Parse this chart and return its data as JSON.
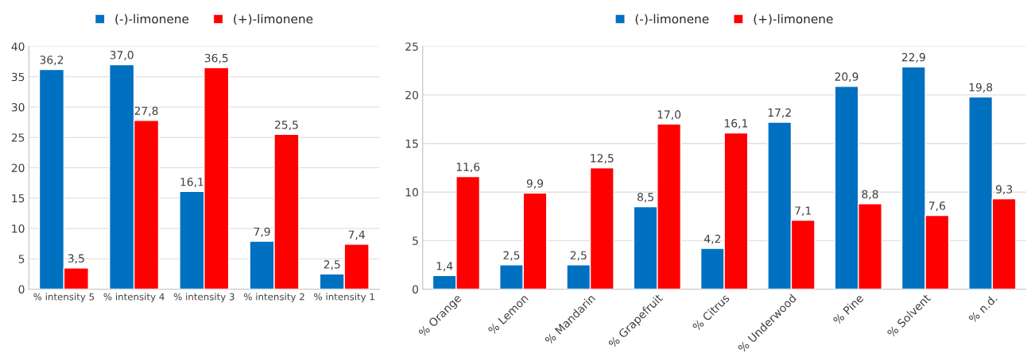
{
  "chart_data": [
    {
      "type": "bar",
      "categories": [
        "% intensity 5",
        "% intensity 4",
        "% intensity 3",
        "% intensity 2",
        "% intensity 1"
      ],
      "series": [
        {
          "name": "(-)-limonene",
          "color": "#0070c0",
          "values": [
            36.2,
            37.0,
            16.1,
            7.9,
            2.5
          ],
          "value_labels": [
            "36,2",
            "37,0",
            "16,1",
            "7,9",
            "2,5"
          ]
        },
        {
          "name": "(+)-limonene",
          "color": "#ff0000",
          "values": [
            3.5,
            27.8,
            36.5,
            25.5,
            7.4
          ],
          "value_labels": [
            "3,5",
            "27,8",
            "36,5",
            "25,5",
            "7,4"
          ]
        }
      ],
      "ylim": [
        0,
        40
      ],
      "yticks": [
        0,
        5,
        10,
        15,
        20,
        25,
        30,
        35,
        40
      ],
      "grid": "y",
      "legend": "top"
    },
    {
      "type": "bar",
      "categories": [
        "% Orange",
        "% Lemon",
        "% Mandarin",
        "% Grapefruit",
        "% Citrus",
        "% Underwood",
        "% Pine",
        "% Solvent",
        "% n.d."
      ],
      "series": [
        {
          "name": "(-)-limonene",
          "color": "#0070c0",
          "values": [
            1.4,
            2.5,
            2.5,
            8.5,
            4.2,
            17.2,
            20.9,
            22.9,
            19.8
          ],
          "value_labels": [
            "1,4",
            "2,5",
            "2,5",
            "8,5",
            "4,2",
            "17,2",
            "20,9",
            "22,9",
            "19,8"
          ]
        },
        {
          "name": "(+)-limonene",
          "color": "#ff0000",
          "values": [
            11.6,
            9.9,
            12.5,
            17.0,
            16.1,
            7.1,
            8.8,
            7.6,
            9.3
          ],
          "value_labels": [
            "11,6",
            "9,9",
            "12,5",
            "17,0",
            "16,1",
            "7,1",
            "8,8",
            "7,6",
            "9,3"
          ]
        }
      ],
      "ylim": [
        0,
        25
      ],
      "yticks": [
        0,
        5,
        10,
        15,
        20,
        25
      ],
      "grid": "y",
      "legend": "top"
    }
  ]
}
